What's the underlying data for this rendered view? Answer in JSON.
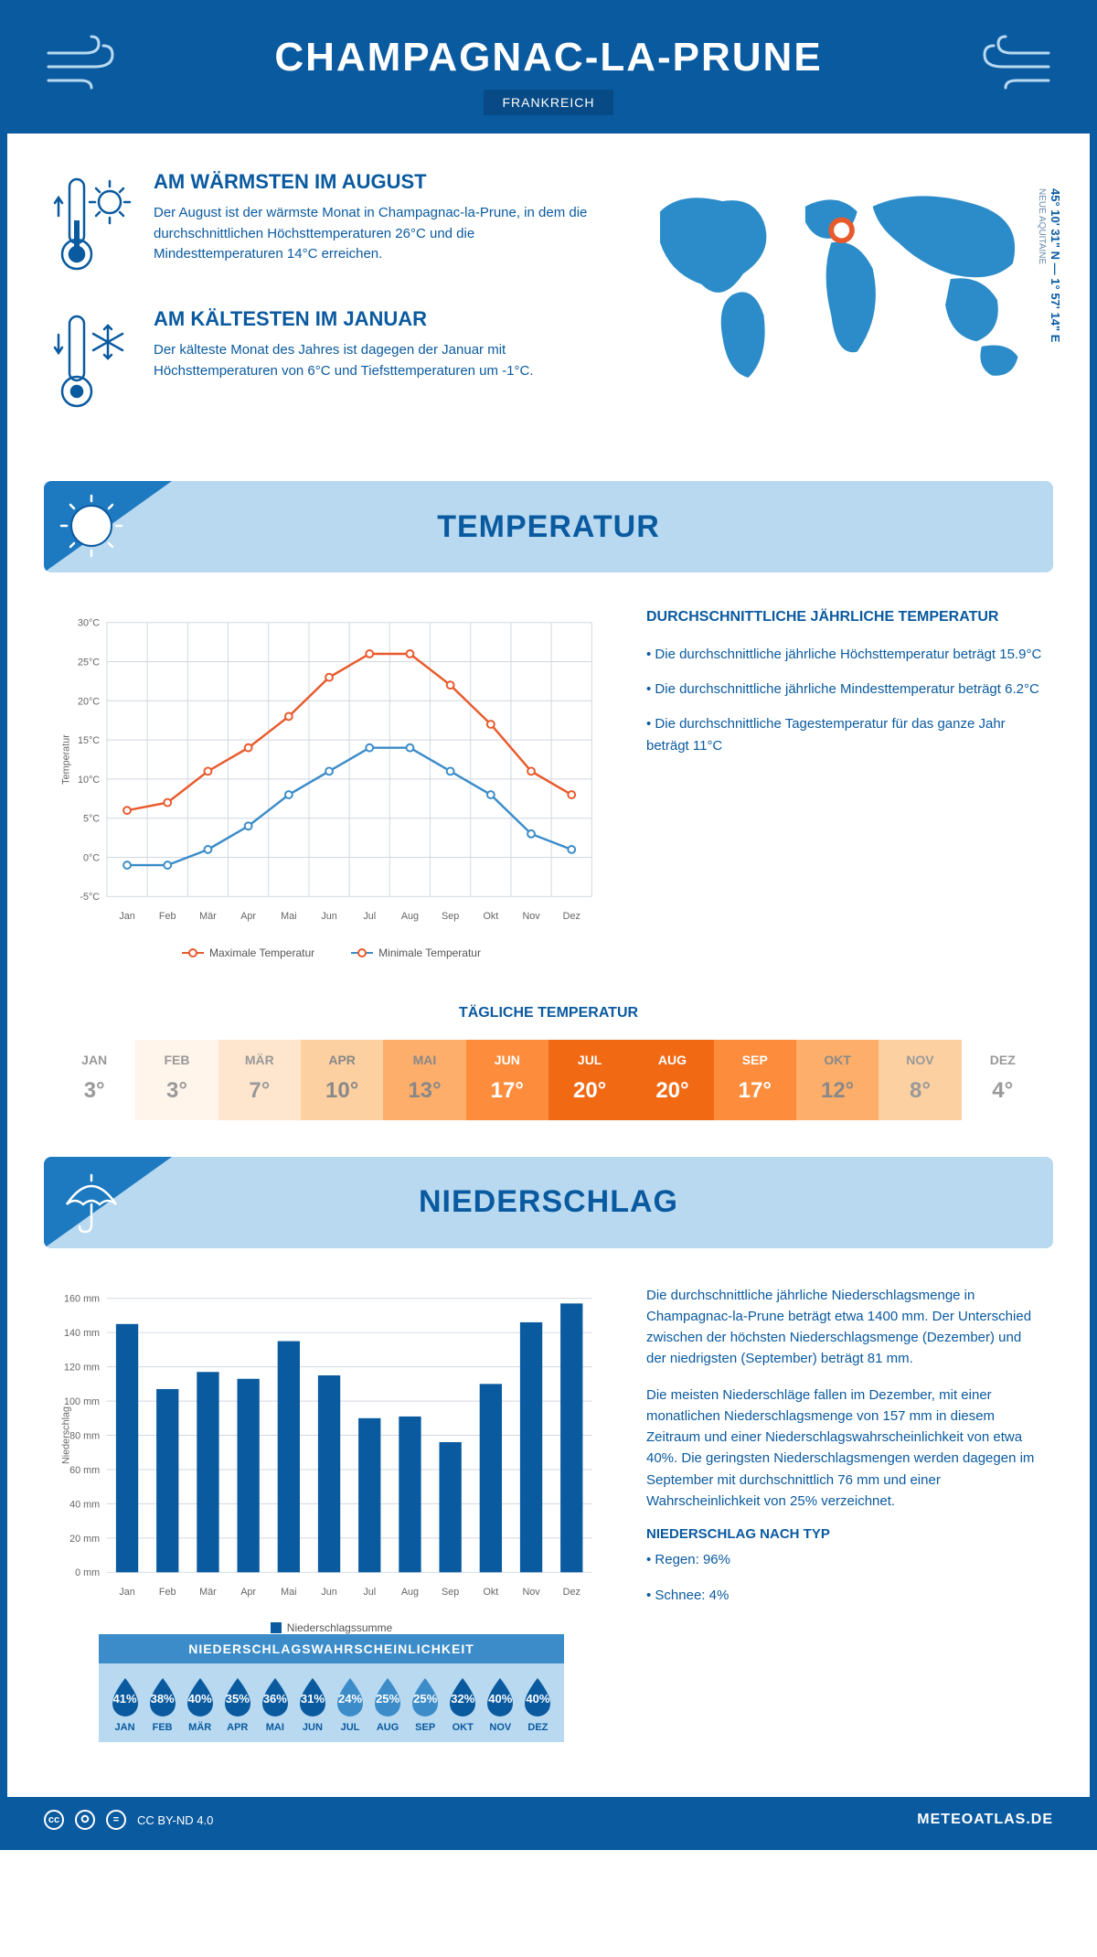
{
  "header": {
    "title": "CHAMPAGNAC-LA-PRUNE",
    "country": "FRANKREICH"
  },
  "coords": {
    "lat": "45° 10' 31\" N — 1° 57' 14\" E",
    "region": "NEUE AQUITAINE"
  },
  "colors": {
    "primary": "#0a5aa0",
    "banner": "#b8d9f0",
    "tri": "#1e7ac0",
    "max_line": "#e85a2c",
    "min_line": "#3b8cc9",
    "bar": "#0a5aa0",
    "grid": "#d0d8e0"
  },
  "intro": {
    "warm": {
      "title": "AM WÄRMSTEN IM AUGUST",
      "text": "Der August ist der wärmste Monat in Champagnac-la-Prune, in dem die durchschnittlichen Höchsttemperaturen 26°C und die Mindesttemperaturen 14°C erreichen."
    },
    "cold": {
      "title": "AM KÄLTESTEN IM JANUAR",
      "text": "Der kälteste Monat des Jahres ist dagegen der Januar mit Höchsttemperaturen von 6°C und Tiefsttemperaturen um -1°C."
    }
  },
  "sections": {
    "temp": "TEMPERATUR",
    "precip": "NIEDERSCHLAG"
  },
  "months": [
    "Jan",
    "Feb",
    "Mär",
    "Apr",
    "Mai",
    "Jun",
    "Jul",
    "Aug",
    "Sep",
    "Okt",
    "Nov",
    "Dez"
  ],
  "months_upper": [
    "JAN",
    "FEB",
    "MÄR",
    "APR",
    "MAI",
    "JUN",
    "JUL",
    "AUG",
    "SEP",
    "OKT",
    "NOV",
    "DEZ"
  ],
  "temp_chart": {
    "ylabel": "Temperatur",
    "ymin": -5,
    "ymax": 30,
    "ystep": 5,
    "max": [
      6,
      7,
      11,
      14,
      18,
      23,
      26,
      26,
      22,
      17,
      11,
      8
    ],
    "min": [
      -1,
      -1,
      1,
      4,
      8,
      11,
      14,
      14,
      11,
      8,
      3,
      1
    ],
    "legend_max": "Maximale Temperatur",
    "legend_min": "Minimale Temperatur"
  },
  "temp_info": {
    "heading": "DURCHSCHNITTLICHE JÄHRLICHE TEMPERATUR",
    "b1": "• Die durchschnittliche jährliche Höchsttemperatur beträgt 15.9°C",
    "b2": "• Die durchschnittliche jährliche Mindesttemperatur beträgt 6.2°C",
    "b3": "• Die durchschnittliche Tagestemperatur für das ganze Jahr beträgt 11°C"
  },
  "daily": {
    "title": "TÄGLICHE TEMPERATUR",
    "values": [
      3,
      3,
      7,
      10,
      13,
      17,
      20,
      20,
      17,
      12,
      8,
      4
    ],
    "bg_colors": [
      "#ffffff",
      "#fff5eb",
      "#fee6ce",
      "#fdd0a2",
      "#fdae6b",
      "#fd8d3c",
      "#f16913",
      "#f16913",
      "#fd8d3c",
      "#fdae6b",
      "#fdd0a2",
      "#ffffff"
    ],
    "text_colors": [
      "#999",
      "#999",
      "#999",
      "#888",
      "#888",
      "#fff",
      "#fff",
      "#fff",
      "#fff",
      "#888",
      "#999",
      "#999"
    ]
  },
  "precip_chart": {
    "ylabel": "Niederschlag",
    "ymin": 0,
    "ymax": 160,
    "ystep": 20,
    "values": [
      145,
      107,
      117,
      113,
      135,
      115,
      90,
      91,
      76,
      110,
      146,
      157
    ],
    "legend": "Niederschlagssumme"
  },
  "precip_info": {
    "p1": "Die durchschnittliche jährliche Niederschlagsmenge in Champagnac-la-Prune beträgt etwa 1400 mm. Der Unterschied zwischen der höchsten Niederschlagsmenge (Dezember) und der niedrigsten (September) beträgt 81 mm.",
    "p2": "Die meisten Niederschläge fallen im Dezember, mit einer monatlichen Niederschlagsmenge von 157 mm in diesem Zeitraum und einer Niederschlagswahrscheinlichkeit von etwa 40%. Die geringsten Niederschlagsmengen werden dagegen im September mit durchschnittlich 76 mm und einer Wahrscheinlichkeit von 25% verzeichnet.",
    "type_h": "NIEDERSCHLAG NACH TYP",
    "type_1": "• Regen: 96%",
    "type_2": "• Schnee: 4%"
  },
  "prob": {
    "title": "NIEDERSCHLAGSWAHRSCHEINLICHKEIT",
    "values": [
      41,
      38,
      40,
      35,
      36,
      31,
      24,
      25,
      25,
      32,
      40,
      40
    ],
    "colors": [
      "#0a5aa0",
      "#0a5aa0",
      "#0a5aa0",
      "#0a5aa0",
      "#0a5aa0",
      "#0a5aa0",
      "#3b8cc9",
      "#3b8cc9",
      "#3b8cc9",
      "#0a5aa0",
      "#0a5aa0",
      "#0a5aa0"
    ]
  },
  "footer": {
    "license": "CC BY-ND 4.0",
    "site": "METEOATLAS.DE"
  }
}
